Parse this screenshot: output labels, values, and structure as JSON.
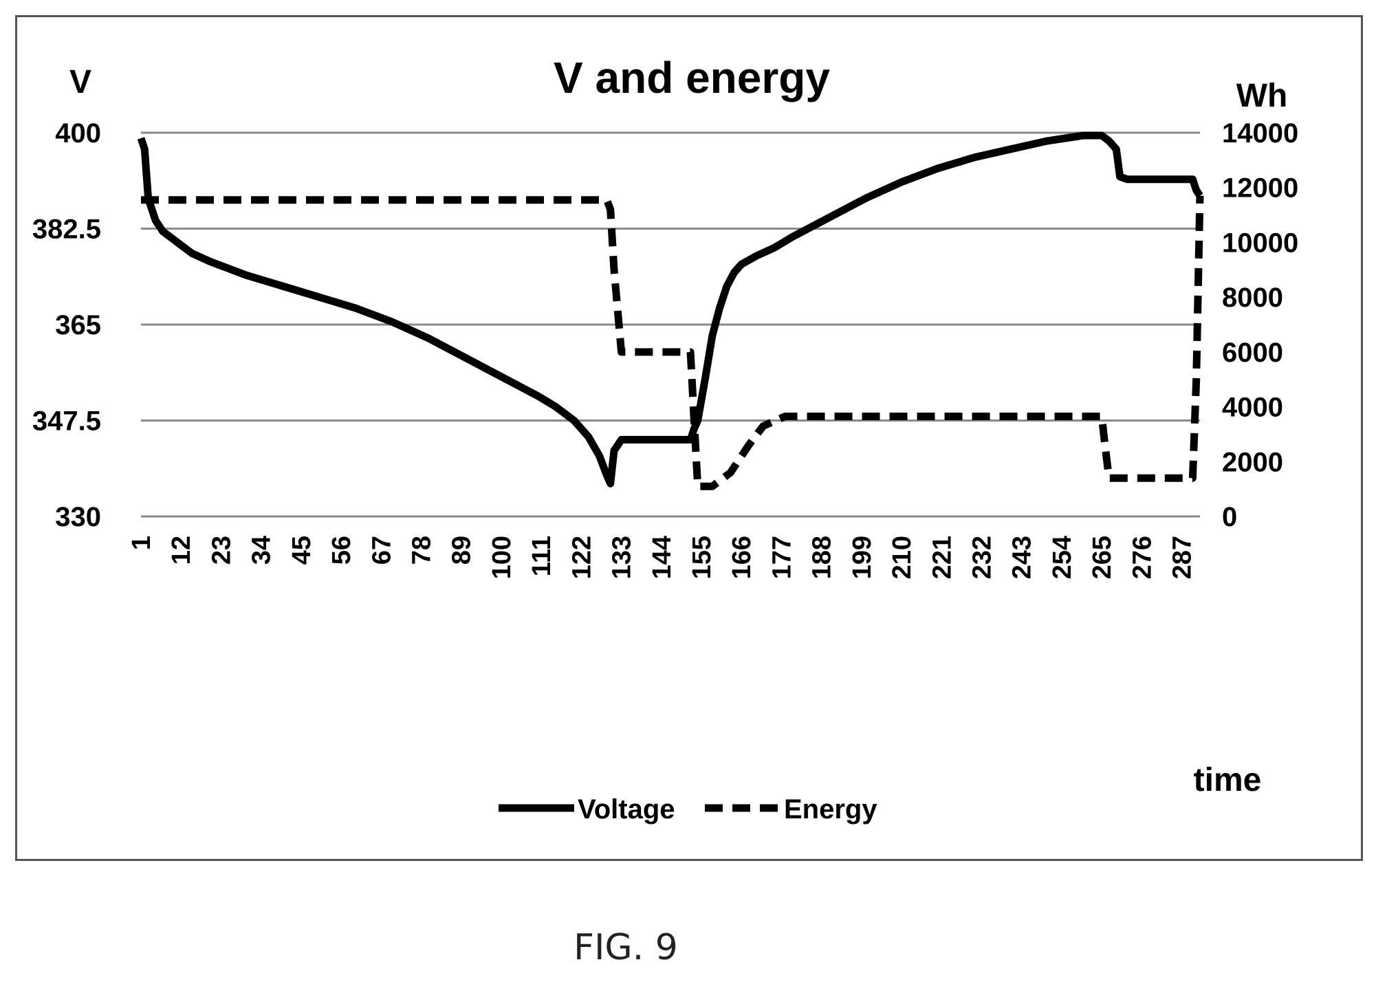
{
  "figure": {
    "caption": "FIG. 9"
  },
  "chart_data": {
    "type": "line",
    "title": "V and energy",
    "xlabel": "time",
    "ylabel_left": "V",
    "ylabel_right": "Wh",
    "x_ticks": [
      1,
      12,
      23,
      34,
      45,
      56,
      67,
      78,
      89,
      100,
      111,
      122,
      133,
      144,
      155,
      166,
      177,
      188,
      199,
      210,
      221,
      232,
      243,
      254,
      265,
      276,
      287
    ],
    "xlim": [
      1,
      292
    ],
    "y_left": {
      "range": [
        330,
        400
      ],
      "ticks": [
        "330",
        "347.5",
        "365",
        "382.5",
        "400"
      ],
      "tick_values": [
        330,
        347.5,
        365,
        382.5,
        400
      ]
    },
    "y_right": {
      "range": [
        0,
        14000
      ],
      "ticks": [
        "0",
        "2000",
        "4000",
        "6000",
        "8000",
        "10000",
        "12000",
        "14000"
      ],
      "tick_values": [
        0,
        2000,
        4000,
        6000,
        8000,
        10000,
        12000,
        14000
      ]
    },
    "grid": "horizontal",
    "legend": {
      "position": "bottom",
      "entries": [
        "Voltage",
        "Energy"
      ]
    },
    "series": [
      {
        "name": "Voltage",
        "axis": "left",
        "style": "solid",
        "x": [
          1,
          2,
          3,
          4,
          5,
          7,
          10,
          15,
          20,
          30,
          40,
          50,
          60,
          70,
          80,
          90,
          100,
          110,
          115,
          120,
          124,
          127,
          129,
          130,
          131,
          133,
          152,
          153,
          154,
          156,
          158,
          160,
          162,
          164,
          166,
          170,
          175,
          180,
          190,
          200,
          210,
          220,
          230,
          240,
          250,
          260,
          265,
          267,
          269,
          270,
          272,
          290,
          291,
          292
        ],
        "y": [
          399,
          397,
          388,
          386,
          384,
          382,
          380.5,
          378,
          376.5,
          374,
          372,
          370,
          368,
          365.5,
          362.5,
          359,
          355.5,
          352,
          350,
          347.5,
          344.5,
          341,
          337.5,
          336,
          342,
          344,
          344,
          346,
          347.5,
          355,
          363,
          368,
          372,
          374.5,
          376,
          377.5,
          379,
          381,
          384.5,
          388,
          391,
          393.5,
          395.5,
          397,
          398.5,
          399.5,
          399.5,
          398.5,
          397,
          392,
          391.5,
          391.5,
          389.5,
          388.5
        ]
      },
      {
        "name": "Energy",
        "axis": "right",
        "style": "dashed",
        "x": [
          1,
          129,
          130,
          131,
          133,
          152,
          153,
          154,
          158,
          163,
          168,
          172,
          178,
          180,
          265,
          266,
          267,
          290,
          291,
          292
        ],
        "y": [
          11550,
          11550,
          11200,
          9000,
          6000,
          6000,
          3500,
          1100,
          1100,
          1600,
          2600,
          3300,
          3650,
          3650,
          3650,
          2500,
          1400,
          1400,
          5000,
          11700
        ]
      }
    ]
  }
}
